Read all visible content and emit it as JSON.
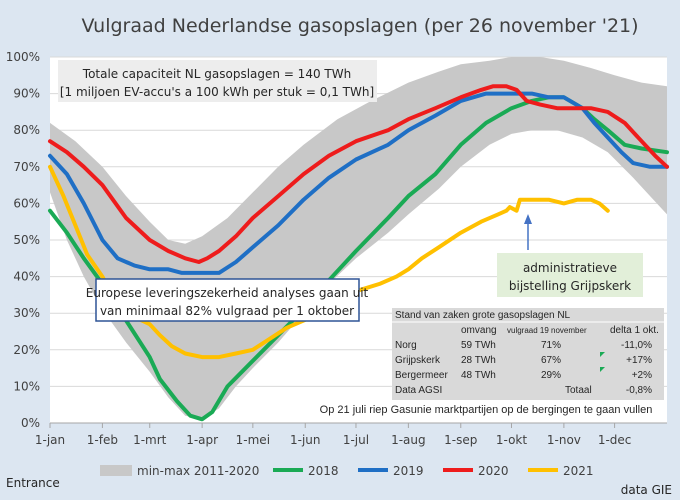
{
  "chart_data": {
    "type": "line",
    "title": "Vulgraad Nederlandse gasopslagen (per 26 november '21)",
    "ylim": [
      0,
      100
    ],
    "yticks": [
      "0%",
      "10%",
      "20%",
      "30%",
      "40%",
      "50%",
      "60%",
      "70%",
      "80%",
      "90%",
      "100%"
    ],
    "xticks": [
      "1-jan",
      "1-feb",
      "1-mrt",
      "1-apr",
      "1-mei",
      "1-jun",
      "1-jul",
      "1-aug",
      "1-sep",
      "1-okt",
      "1-nov",
      "1-dec"
    ],
    "xtick_days": [
      0,
      31,
      59,
      90,
      120,
      151,
      181,
      212,
      243,
      273,
      304,
      334
    ],
    "x_range_days": [
      0,
      365
    ],
    "band": {
      "name": "min-max 2011-2020",
      "color": "#c8c8c8",
      "upper": [
        [
          0,
          82
        ],
        [
          15,
          77
        ],
        [
          31,
          70
        ],
        [
          45,
          62
        ],
        [
          59,
          55
        ],
        [
          70,
          50
        ],
        [
          80,
          49
        ],
        [
          90,
          51
        ],
        [
          105,
          56
        ],
        [
          120,
          63
        ],
        [
          135,
          70
        ],
        [
          150,
          76
        ],
        [
          170,
          83
        ],
        [
          190,
          88
        ],
        [
          212,
          93
        ],
        [
          230,
          96
        ],
        [
          243,
          98
        ],
        [
          260,
          99
        ],
        [
          273,
          100
        ],
        [
          290,
          100
        ],
        [
          304,
          99
        ],
        [
          320,
          97
        ],
        [
          334,
          95
        ],
        [
          350,
          93
        ],
        [
          365,
          92
        ]
      ],
      "lower": [
        [
          0,
          63
        ],
        [
          10,
          50
        ],
        [
          20,
          40
        ],
        [
          31,
          31
        ],
        [
          45,
          22
        ],
        [
          59,
          14
        ],
        [
          70,
          7
        ],
        [
          80,
          2
        ],
        [
          90,
          1
        ],
        [
          100,
          4
        ],
        [
          110,
          10
        ],
        [
          120,
          15
        ],
        [
          135,
          22
        ],
        [
          150,
          30
        ],
        [
          165,
          38
        ],
        [
          181,
          45
        ],
        [
          200,
          52
        ],
        [
          212,
          57
        ],
        [
          230,
          64
        ],
        [
          243,
          70
        ],
        [
          260,
          76
        ],
        [
          273,
          79
        ],
        [
          285,
          80
        ],
        [
          300,
          80
        ],
        [
          315,
          78
        ],
        [
          330,
          74
        ],
        [
          345,
          67
        ],
        [
          355,
          62
        ],
        [
          365,
          57
        ]
      ]
    },
    "series": [
      {
        "name": "2018",
        "color": "#1aaa55",
        "points": [
          [
            0,
            58
          ],
          [
            10,
            52
          ],
          [
            20,
            45
          ],
          [
            31,
            38
          ],
          [
            45,
            28
          ],
          [
            59,
            18
          ],
          [
            65,
            12
          ],
          [
            75,
            6
          ],
          [
            83,
            2
          ],
          [
            90,
            1
          ],
          [
            96,
            3
          ],
          [
            105,
            10
          ],
          [
            120,
            17
          ],
          [
            135,
            24
          ],
          [
            150,
            31
          ],
          [
            165,
            39
          ],
          [
            181,
            47
          ],
          [
            200,
            56
          ],
          [
            212,
            62
          ],
          [
            228,
            68
          ],
          [
            243,
            76
          ],
          [
            258,
            82
          ],
          [
            273,
            86
          ],
          [
            285,
            88
          ],
          [
            295,
            89
          ],
          [
            304,
            89
          ],
          [
            315,
            86
          ],
          [
            322,
            83
          ],
          [
            330,
            80
          ],
          [
            340,
            76
          ],
          [
            350,
            75
          ],
          [
            365,
            74
          ]
        ]
      },
      {
        "name": "2019",
        "color": "#1f6fc5",
        "points": [
          [
            0,
            73
          ],
          [
            10,
            68
          ],
          [
            20,
            60
          ],
          [
            31,
            50
          ],
          [
            40,
            45
          ],
          [
            50,
            43
          ],
          [
            59,
            42
          ],
          [
            70,
            42
          ],
          [
            78,
            41
          ],
          [
            85,
            41
          ],
          [
            90,
            41
          ],
          [
            96,
            41
          ],
          [
            100,
            41
          ],
          [
            110,
            44
          ],
          [
            120,
            48
          ],
          [
            135,
            54
          ],
          [
            150,
            61
          ],
          [
            165,
            67
          ],
          [
            181,
            72
          ],
          [
            200,
            76
          ],
          [
            212,
            80
          ],
          [
            228,
            84
          ],
          [
            243,
            88
          ],
          [
            258,
            90
          ],
          [
            268,
            90
          ],
          [
            273,
            90
          ],
          [
            285,
            90
          ],
          [
            295,
            89
          ],
          [
            304,
            89
          ],
          [
            315,
            86
          ],
          [
            322,
            82
          ],
          [
            330,
            78
          ],
          [
            338,
            74
          ],
          [
            345,
            71
          ],
          [
            355,
            70
          ],
          [
            365,
            70
          ]
        ]
      },
      {
        "name": "2020",
        "color": "#ee1c1c",
        "points": [
          [
            0,
            77
          ],
          [
            10,
            74
          ],
          [
            20,
            70
          ],
          [
            31,
            65
          ],
          [
            45,
            56
          ],
          [
            59,
            50
          ],
          [
            70,
            47
          ],
          [
            80,
            45
          ],
          [
            88,
            44
          ],
          [
            93,
            45
          ],
          [
            100,
            47
          ],
          [
            110,
            51
          ],
          [
            120,
            56
          ],
          [
            135,
            62
          ],
          [
            150,
            68
          ],
          [
            165,
            73
          ],
          [
            181,
            77
          ],
          [
            200,
            80
          ],
          [
            212,
            83
          ],
          [
            228,
            86
          ],
          [
            243,
            89
          ],
          [
            255,
            91
          ],
          [
            262,
            92
          ],
          [
            270,
            92
          ],
          [
            276,
            91
          ],
          [
            282,
            88
          ],
          [
            290,
            87
          ],
          [
            300,
            86
          ],
          [
            310,
            86
          ],
          [
            320,
            86
          ],
          [
            330,
            85
          ],
          [
            340,
            82
          ],
          [
            350,
            77
          ],
          [
            358,
            73
          ],
          [
            365,
            70
          ]
        ]
      },
      {
        "name": "2021",
        "color": "#ffc000",
        "points": [
          [
            0,
            70
          ],
          [
            8,
            62
          ],
          [
            15,
            54
          ],
          [
            22,
            46
          ],
          [
            31,
            40
          ],
          [
            40,
            32
          ],
          [
            50,
            29
          ],
          [
            59,
            27
          ],
          [
            65,
            24
          ],
          [
            72,
            21
          ],
          [
            80,
            19
          ],
          [
            90,
            18
          ],
          [
            100,
            18
          ],
          [
            110,
            19
          ],
          [
            120,
            20
          ],
          [
            130,
            23
          ],
          [
            140,
            26
          ],
          [
            150,
            28
          ],
          [
            160,
            30
          ],
          [
            170,
            33
          ],
          [
            181,
            36
          ],
          [
            195,
            38
          ],
          [
            205,
            40
          ],
          [
            212,
            42
          ],
          [
            220,
            45
          ],
          [
            230,
            48
          ],
          [
            243,
            52
          ],
          [
            255,
            55
          ],
          [
            265,
            57
          ],
          [
            270,
            58
          ],
          [
            272,
            59
          ],
          [
            276,
            58
          ],
          [
            278,
            61
          ],
          [
            285,
            61
          ],
          [
            295,
            61
          ],
          [
            304,
            60
          ],
          [
            312,
            61
          ],
          [
            320,
            61
          ],
          [
            325,
            60
          ],
          [
            330,
            58
          ]
        ]
      }
    ],
    "legend": [
      {
        "label": "min-max 2011-2020",
        "color": "#c8c8c8",
        "kind": "band"
      },
      {
        "label": "2018",
        "color": "#1aaa55",
        "kind": "line"
      },
      {
        "label": "2019",
        "color": "#1f6fc5",
        "kind": "line"
      },
      {
        "label": "2020",
        "color": "#ee1c1c",
        "kind": "line"
      },
      {
        "label": "2021",
        "color": "#ffc000",
        "kind": "line"
      }
    ]
  },
  "annotations": {
    "capacity_line1": "Totale capaciteit NL gasopslagen = 140 TWh",
    "capacity_line2": "[1 miljoen EV-accu's a 100 kWh per stuk = 0,1 TWh]",
    "europe_line1": "Europese leveringszekerheid analyses gaan uit",
    "europe_line2": "van minimaal 82% vulgraad per 1 oktober",
    "admin_line1": "administratieve",
    "admin_line2": "bijstelling Grijpskerk"
  },
  "table": {
    "title": "Stand van zaken grote gasopslagen NL",
    "headers": [
      "omvang",
      "vulgraad 19 november",
      "delta 1 okt."
    ],
    "rows": [
      {
        "name": "Norg",
        "omvang": "59 TWh",
        "vulgraad": "71%",
        "delta": "-11,0%"
      },
      {
        "name": "Grijpskerk",
        "omvang": "28 TWh",
        "vulgraad": "67%",
        "delta": "+17%"
      },
      {
        "name": "Bergermeer",
        "omvang": "48 TWh",
        "vulgraad": "29%",
        "delta": "+2%"
      }
    ],
    "agsi_label": "Data AGSI",
    "total_label": "Totaal",
    "total_value": "-0,8%",
    "note": "Op 21 juli riep Gasunie marktpartijen op de bergingen te gaan vullen"
  },
  "footer": {
    "left": "Entrance",
    "right": "data GIE"
  }
}
